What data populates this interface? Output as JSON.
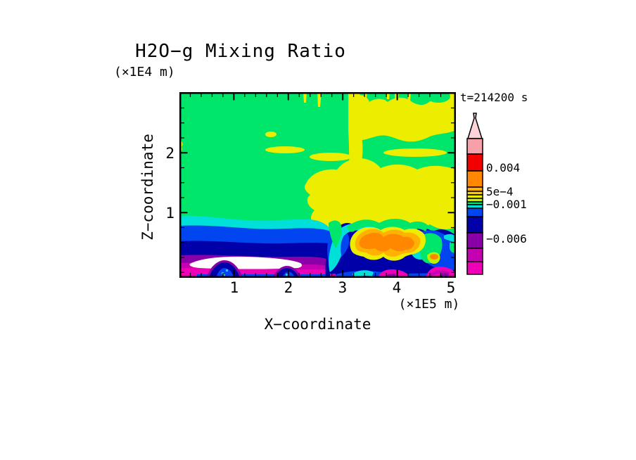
{
  "title": "H2O−g Mixing Ratio",
  "time_label": "t=214200 s",
  "axes": {
    "x": {
      "label": "X−coordinate",
      "units": "(×1E5 m)",
      "tick_labels": [
        "1",
        "2",
        "3",
        "4",
        "5"
      ]
    },
    "y": {
      "label": "Z−coordinate",
      "units": "(×1E4 m)",
      "tick_labels": [
        "2",
        "1"
      ]
    }
  },
  "colorbar": {
    "tick_labels": [
      "0.004",
      "5e−4",
      "−0.001",
      "−0.006"
    ],
    "segment_colors_top_to_bottom": [
      "#FDD3DA",
      "#F7A0AA",
      "#F20000",
      "#FF7300",
      "#FFA000",
      "#FFC800",
      "#EDED00",
      "#BFF000",
      "#00E66A",
      "#00DFD8",
      "#0045F0",
      "#0000A8",
      "#8A00A8",
      "#C400B0",
      "#EF00B8"
    ]
  },
  "palette": {
    "green": "#00E66A",
    "yellow": "#EDED00",
    "cyan": "#00DFD8",
    "blue": "#0045F0",
    "navy": "#0000A8",
    "purple": "#8A00A8",
    "dark_magenta": "#C400B0",
    "magenta": "#EF00B8",
    "white": "#FFFFFF",
    "orange": "#FF8800",
    "amber": "#FFB300",
    "gold": "#FFC800",
    "yellow_green": "#BFF000",
    "red": "#F20000",
    "salmon": "#F7A0AA",
    "pink": "#FDD3DA",
    "frame": "#000000"
  },
  "chart_data": {
    "type": "heatmap",
    "subtype": "filled-contour",
    "title": "H2O−g Mixing Ratio",
    "xlabel": "X−coordinate",
    "ylabel": "Z−coordinate",
    "x_units": "(×1E5 m)",
    "y_units": "(×1E4 m)",
    "time_annotation": "t=214200 s",
    "xlim": [
      0,
      5.1
    ],
    "ylim": [
      0,
      3.1
    ],
    "x_ticks": [
      1,
      2,
      3,
      4,
      5
    ],
    "y_ticks": [
      1,
      2
    ],
    "grid": false,
    "legend_position": "right-colorbar-with-arrow-top",
    "colorbar_tick_labels": [
      "0.004",
      "5e−4",
      "−0.001",
      "−0.006"
    ],
    "colorbar_colors_top_to_bottom": [
      "#FDD3DA",
      "#F7A0AA",
      "#F20000",
      "#FF7300",
      "#FFA000",
      "#FFC800",
      "#EDED00",
      "#BFF000",
      "#00E66A",
      "#00DFD8",
      "#0045F0",
      "#0000A8",
      "#8A00A8",
      "#C400B0",
      "#EF00B8"
    ],
    "regions": [
      {
        "color": "green",
        "approx_value": "between -0.001 and 5e-4",
        "where": "background over most of the domain above z~0.9e4 m"
      },
      {
        "color": "yellow",
        "approx_value": "just above 5e-4",
        "where": "large cloud in upper right (x>2.5e5 m), mushroom-shaped plume at mid-levels x=3-5e5 m, band at left edge near z~1e4 m, thin drips from top edge"
      },
      {
        "color": "orange/amber",
        "approx_value": "up to ~0.004",
        "where": "low-level plume core near x=3.2-4.4e5 m, z~0.3-0.7e4 m"
      },
      {
        "color": "cyan/blue/navy",
        "approx_value": "-0.001 to -0.005",
        "where": "stratified layers below z~0.9e4 m across full width"
      },
      {
        "color": "purple/magenta",
        "approx_value": "-0.006 and below",
        "where": "near-surface layers, patches at bottom right"
      },
      {
        "color": "white",
        "approx_value": "below palette minimum",
        "where": "near-surface lens at x~0.4-2.1e5 m"
      }
    ]
  }
}
